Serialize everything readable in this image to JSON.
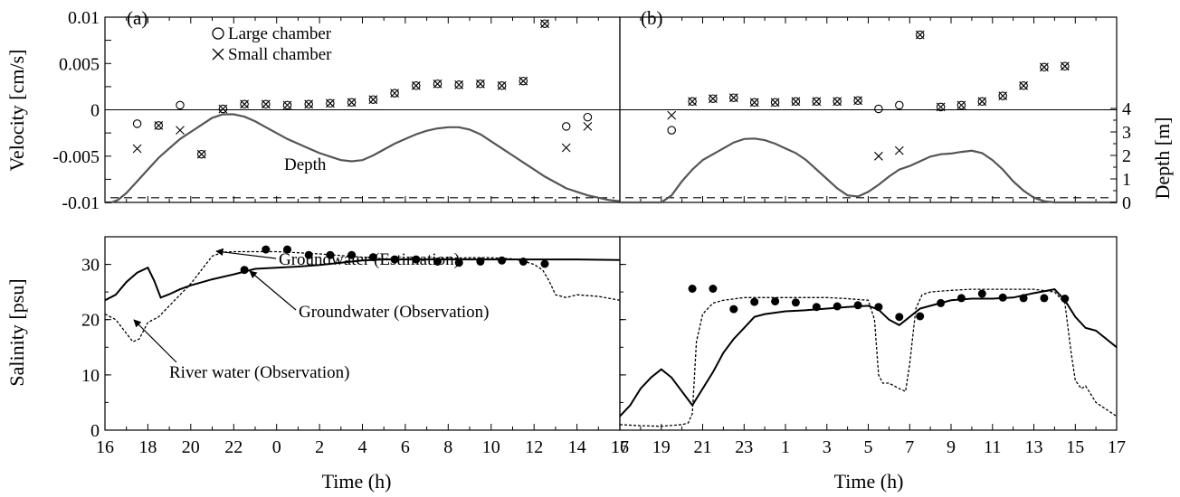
{
  "colors": {
    "axis": "#000000",
    "depth_line": "#555555",
    "estimation_line": "#000000",
    "observation_line": "#000000",
    "markers": "#000000"
  },
  "chart_data": [
    {
      "id": "a_velocity",
      "type": "scatter",
      "panel_label": "(a)",
      "ylabel": "Velocity [cm/s]",
      "ylim": [
        -0.01,
        0.01
      ],
      "yticks": [
        "-0.01",
        "-0.005",
        "0",
        "0.005",
        "0.01"
      ],
      "xlim": [
        16,
        40
      ],
      "legend": {
        "position": "top-left",
        "entries": [
          "Large chamber",
          "Small chamber"
        ]
      },
      "series": [
        {
          "name": "Large chamber",
          "marker": "circle",
          "x": [
            17.5,
            18.5,
            19.5,
            20.5,
            21.5,
            22.5,
            23.5,
            24.5,
            25.5,
            26.5,
            27.5,
            28.5,
            29.5,
            30.5,
            31.5,
            32.5,
            33.5,
            34.5,
            35.5,
            36.5,
            37.5,
            38.5
          ],
          "y": [
            -0.0015,
            -0.0017,
            0.0005,
            -0.0048,
            0.0001,
            0.0006,
            0.0006,
            0.0005,
            0.0006,
            0.0007,
            0.0008,
            0.0011,
            0.0018,
            0.0026,
            0.0028,
            0.0027,
            0.0028,
            0.0026,
            0.0031,
            0.0093,
            -0.0018,
            -0.0008
          ]
        },
        {
          "name": "Small chamber",
          "marker": "cross",
          "x": [
            17.5,
            18.5,
            19.5,
            20.5,
            21.5,
            22.5,
            23.5,
            24.5,
            25.5,
            26.5,
            27.5,
            28.5,
            29.5,
            30.5,
            31.5,
            32.5,
            33.5,
            34.5,
            35.5,
            36.5,
            37.5,
            38.5
          ],
          "y": [
            -0.0042,
            -0.0017,
            -0.0022,
            -0.0048,
            0.0001,
            0.0006,
            0.0006,
            0.0005,
            0.0006,
            0.0007,
            0.0008,
            0.0011,
            0.0018,
            0.0026,
            0.0028,
            0.0027,
            0.0028,
            0.0026,
            0.0031,
            0.0093,
            -0.0041,
            -0.0018
          ]
        }
      ],
      "depth": {
        "label": "Depth",
        "ylim": [
          0,
          4
        ],
        "dashed_level": 0.2,
        "x": [
          16.0,
          16.3,
          16.6,
          17.0,
          17.5,
          18.0,
          18.5,
          19.0,
          19.5,
          20.0,
          20.5,
          21.0,
          21.5,
          22.0,
          22.5,
          23.0,
          23.5,
          24.0,
          24.5,
          25.0,
          25.5,
          26.0,
          26.5,
          27.0,
          27.5,
          28.0,
          28.5,
          29.0,
          29.5,
          30.0,
          30.5,
          31.0,
          31.5,
          32.0,
          32.5,
          33.0,
          33.5,
          34.0,
          34.5,
          35.0,
          35.5,
          36.0,
          36.5,
          37.0,
          37.5,
          38.0,
          38.5,
          39.0,
          39.5,
          40.0
        ],
        "y": [
          0,
          0,
          0.1,
          0.4,
          0.9,
          1.4,
          1.9,
          2.3,
          2.7,
          3.0,
          3.3,
          3.6,
          3.75,
          3.75,
          3.65,
          3.45,
          3.2,
          2.95,
          2.7,
          2.5,
          2.3,
          2.1,
          1.95,
          1.8,
          1.75,
          1.8,
          2.0,
          2.25,
          2.5,
          2.7,
          2.9,
          3.05,
          3.15,
          3.2,
          3.2,
          3.1,
          2.9,
          2.6,
          2.3,
          2.0,
          1.7,
          1.4,
          1.1,
          0.85,
          0.6,
          0.45,
          0.3,
          0.2,
          0.1,
          0.05
        ]
      }
    },
    {
      "id": "b_velocity",
      "type": "scatter",
      "panel_label": "(b)",
      "ylabel": "Depth [m]",
      "ylim": [
        -0.01,
        0.01
      ],
      "xlim": [
        17,
        41
      ],
      "series": [
        {
          "name": "Large chamber",
          "marker": "circle",
          "x": [
            19.5,
            20.5,
            21.5,
            22.5,
            23.5,
            24.5,
            25.5,
            26.5,
            27.5,
            28.5,
            29.5,
            30.5,
            31.5,
            32.5,
            33.5,
            34.5,
            35.5,
            36.5,
            37.5,
            38.5
          ],
          "y": [
            -0.0022,
            0.0009,
            0.0012,
            0.0013,
            0.0008,
            0.0008,
            0.0009,
            0.0009,
            0.0009,
            0.001,
            0.0001,
            0.0005,
            0.0081,
            0.0003,
            0.0005,
            0.0009,
            0.0015,
            0.0026,
            0.0046,
            0.0047
          ]
        },
        {
          "name": "Small chamber",
          "marker": "cross",
          "x": [
            19.5,
            20.5,
            21.5,
            22.5,
            23.5,
            24.5,
            25.5,
            26.5,
            27.5,
            28.5,
            29.5,
            30.5,
            31.5,
            32.5,
            33.5,
            34.5,
            35.5,
            36.5,
            37.5,
            38.5
          ],
          "y": [
            -0.0006,
            0.0009,
            0.0012,
            0.0013,
            0.0008,
            0.0008,
            0.0009,
            0.0009,
            0.0009,
            0.001,
            -0.005,
            -0.0044,
            0.0081,
            0.0003,
            0.0005,
            0.0009,
            0.0015,
            0.0026,
            0.0046,
            0.0047
          ]
        }
      ],
      "depth": {
        "ylim": [
          0,
          4
        ],
        "yticks": [
          "0",
          "1",
          "2",
          "3",
          "4"
        ],
        "dashed_level": 0.2,
        "x": [
          17.0,
          18.0,
          19.0,
          19.5,
          20.0,
          20.5,
          21.0,
          21.5,
          22.0,
          22.5,
          23.0,
          23.5,
          24.0,
          24.5,
          25.0,
          25.5,
          26.0,
          26.5,
          27.0,
          27.5,
          28.0,
          28.5,
          29.0,
          29.5,
          30.0,
          30.5,
          31.0,
          31.5,
          32.0,
          32.5,
          33.0,
          33.5,
          34.0,
          34.5,
          35.0,
          35.5,
          36.0,
          36.5,
          37.0,
          37.5,
          38.0,
          38.5,
          39.0,
          39.5,
          40.0,
          41.0
        ],
        "y": [
          0,
          0,
          0,
          0.3,
          0.9,
          1.4,
          1.8,
          2.05,
          2.3,
          2.55,
          2.7,
          2.72,
          2.65,
          2.5,
          2.3,
          2.1,
          1.8,
          1.4,
          1.0,
          0.6,
          0.3,
          0.25,
          0.45,
          0.75,
          1.1,
          1.4,
          1.55,
          1.75,
          1.95,
          2.05,
          2.08,
          2.15,
          2.2,
          2.1,
          1.8,
          1.4,
          0.9,
          0.5,
          0.2,
          0.05,
          0,
          0,
          0,
          0,
          0,
          0
        ]
      }
    },
    {
      "id": "a_salinity",
      "type": "line",
      "ylabel": "Salinity [psu]",
      "ylim": [
        0,
        35
      ],
      "yticks": [
        "0",
        "10",
        "20",
        "30"
      ],
      "xlim": [
        16,
        40
      ],
      "xlabel": "Time (h)",
      "xticks": {
        "values": [
          16,
          18,
          20,
          22,
          24,
          26,
          28,
          30,
          32,
          34,
          36,
          38,
          40
        ],
        "labels": [
          "16",
          "18",
          "20",
          "22",
          "0",
          "2",
          "4",
          "6",
          "8",
          "10",
          "12",
          "14",
          "16"
        ]
      },
      "annotations": [
        "Groundwater (Estimation)",
        "Groundwater (Observation)",
        "River water (Observation)"
      ],
      "series": [
        {
          "name": "Groundwater (Observation)",
          "style": "solid",
          "x": [
            16.0,
            16.5,
            17.0,
            17.5,
            18.0,
            18.3,
            18.6,
            19.0,
            19.5,
            20.0,
            21.0,
            22.0,
            23.0,
            24.0,
            25.0,
            26.0,
            27.0,
            28.0,
            29.0,
            30.0,
            31.0,
            32.0,
            34.0,
            36.0,
            38.0,
            40.0
          ],
          "y": [
            23.5,
            24.5,
            26.8,
            28.5,
            29.4,
            27.0,
            24.0,
            24.6,
            25.5,
            26.2,
            27.3,
            28.2,
            29.2,
            29.4,
            29.6,
            29.9,
            30.3,
            30.7,
            30.9,
            30.9,
            30.9,
            30.9,
            30.9,
            30.9,
            30.9,
            30.8
          ]
        },
        {
          "name": "Groundwater (Estimation)",
          "style": "dotted",
          "x": [
            16.0,
            16.5,
            17.0,
            17.3,
            17.6,
            18.0,
            18.5,
            19.0,
            19.5,
            20.0,
            20.5,
            21.0,
            21.5,
            22.0,
            23.0,
            24.0,
            25.0,
            26.0,
            27.0,
            28.0,
            29.0,
            30.0,
            31.0,
            32.0,
            33.0,
            34.0,
            35.0,
            35.5,
            36.0,
            36.4,
            36.7,
            37.0,
            37.5,
            38.0,
            39.0,
            40.0
          ],
          "y": [
            21.0,
            20.0,
            17.5,
            16.0,
            16.5,
            19.5,
            20.5,
            22.5,
            24.5,
            26.5,
            29.0,
            31.5,
            32.2,
            32.3,
            32.3,
            32.3,
            32.1,
            31.9,
            31.6,
            31.3,
            31.0,
            31.0,
            31.0,
            31.1,
            31.2,
            31.2,
            31.0,
            30.6,
            30.0,
            29.0,
            27.0,
            24.5,
            24.0,
            24.5,
            24.2,
            23.5
          ]
        },
        {
          "name": "Groundwater (Estimation) samples",
          "style": "markers",
          "x": [
            22.5,
            23.5,
            24.5,
            25.5,
            26.5,
            27.5,
            28.5,
            29.5,
            30.5,
            31.5,
            32.5,
            33.5,
            34.5,
            35.5,
            36.5
          ],
          "y": [
            29.0,
            32.7,
            32.7,
            31.7,
            31.7,
            31.7,
            31.3,
            30.9,
            30.9,
            30.5,
            30.3,
            30.5,
            30.7,
            30.5,
            30.1
          ]
        }
      ]
    },
    {
      "id": "b_salinity",
      "type": "line",
      "ylim": [
        0,
        35
      ],
      "xlim": [
        17,
        41
      ],
      "xlabel": "Time (h)",
      "xticks": {
        "values": [
          17,
          19,
          21,
          23,
          25,
          27,
          29,
          31,
          33,
          35,
          37,
          39,
          41
        ],
        "labels": [
          "17",
          "19",
          "21",
          "23",
          "1",
          "3",
          "5",
          "7",
          "9",
          "11",
          "13",
          "15",
          "17"
        ]
      },
      "series": [
        {
          "name": "Groundwater (Observation)",
          "style": "solid",
          "x": [
            17.0,
            17.5,
            18.0,
            18.5,
            19.0,
            19.5,
            20.0,
            20.5,
            21.0,
            21.5,
            22.0,
            22.5,
            23.0,
            23.5,
            24.0,
            25.0,
            26.0,
            27.0,
            28.0,
            29.0,
            29.5,
            30.0,
            30.5,
            31.0,
            31.5,
            32.0,
            32.5,
            33.0,
            34.0,
            35.0,
            36.0,
            37.0,
            38.0,
            38.5,
            39.0,
            39.5,
            40.0,
            40.5,
            41.0
          ],
          "y": [
            2.5,
            4.5,
            7.5,
            9.5,
            11.0,
            9.5,
            7.0,
            4.5,
            7.5,
            10.5,
            14.0,
            16.5,
            18.5,
            20.5,
            21.0,
            21.5,
            21.7,
            22.0,
            22.3,
            22.5,
            21.8,
            20.0,
            19.0,
            20.5,
            22.0,
            22.5,
            23.0,
            23.5,
            23.8,
            23.8,
            24.0,
            24.8,
            25.5,
            23.5,
            20.5,
            18.5,
            18.0,
            16.5,
            15.0
          ]
        },
        {
          "name": "Groundwater (Estimation)",
          "style": "dotted",
          "x": [
            17.0,
            18.0,
            19.0,
            20.0,
            20.3,
            20.5,
            20.7,
            21.0,
            21.5,
            22.0,
            23.0,
            24.0,
            25.0,
            26.0,
            27.0,
            28.0,
            29.0,
            29.3,
            29.5,
            29.7,
            30.0,
            30.5,
            30.8,
            31.0,
            31.3,
            31.6,
            32.0,
            33.0,
            34.0,
            35.0,
            36.0,
            37.0,
            38.0,
            38.5,
            38.8,
            39.0,
            39.3,
            39.5,
            40.0,
            41.0
          ],
          "y": [
            1.0,
            0.8,
            0.7,
            1.0,
            1.3,
            3.0,
            16.0,
            21.0,
            23.0,
            23.5,
            24.0,
            24.0,
            24.0,
            24.0,
            24.0,
            23.8,
            23.5,
            20.0,
            10.0,
            8.5,
            8.5,
            7.5,
            7.0,
            12.0,
            22.0,
            24.5,
            25.0,
            25.3,
            25.5,
            25.5,
            25.5,
            25.5,
            25.0,
            23.0,
            14.0,
            9.0,
            7.5,
            8.0,
            5.0,
            2.5
          ]
        },
        {
          "name": "Groundwater (Estimation) samples",
          "style": "markers",
          "x": [
            20.5,
            21.5,
            22.5,
            23.5,
            24.5,
            25.5,
            26.5,
            27.5,
            28.5,
            29.5,
            30.5,
            31.5,
            32.5,
            33.5,
            34.5,
            35.5,
            36.5,
            37.5,
            38.5
          ],
          "y": [
            25.6,
            25.6,
            21.9,
            23.2,
            23.3,
            23.1,
            22.3,
            22.4,
            22.6,
            22.3,
            20.5,
            20.6,
            23.0,
            23.9,
            24.7,
            24.0,
            23.9,
            23.9,
            23.8
          ]
        }
      ]
    }
  ]
}
